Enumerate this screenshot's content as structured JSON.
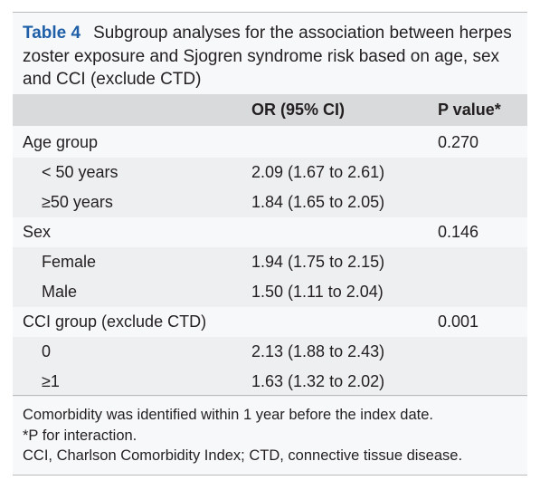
{
  "title": {
    "label": "Table 4",
    "text": "Subgroup analyses for the association between herpes zoster exposure and Sjogren syndrome risk based on age, sex and CCI (exclude CTD)"
  },
  "table": {
    "columns": [
      "OR (95% CI)",
      "P value*"
    ],
    "rows": [
      {
        "label": "Age group",
        "p": "0.270"
      },
      {
        "label": "< 50 years",
        "sub": true,
        "or": "2.09 (1.67 to 2.61)"
      },
      {
        "label": "≥50 years",
        "sub": true,
        "or": "1.84 (1.65 to 2.05)"
      },
      {
        "label": "Sex",
        "p": "0.146"
      },
      {
        "label": "Female",
        "sub": true,
        "or": "1.94 (1.75 to 2.15)"
      },
      {
        "label": "Male",
        "sub": true,
        "or": "1.50 (1.11 to 2.04)"
      },
      {
        "label": "CCI group (exclude CTD)",
        "p": "0.001"
      },
      {
        "label": "0",
        "sub": true,
        "or": "2.13 (1.88 to 2.43)"
      },
      {
        "label": "≥1",
        "sub": true,
        "or": "1.63 (1.32 to 2.02)"
      }
    ]
  },
  "footnotes": [
    "Comorbidity was identified within 1 year before the index date.",
    "*P for interaction.",
    "CCI, Charlson Comorbidity Index; CTD, connective tissue disease."
  ]
}
